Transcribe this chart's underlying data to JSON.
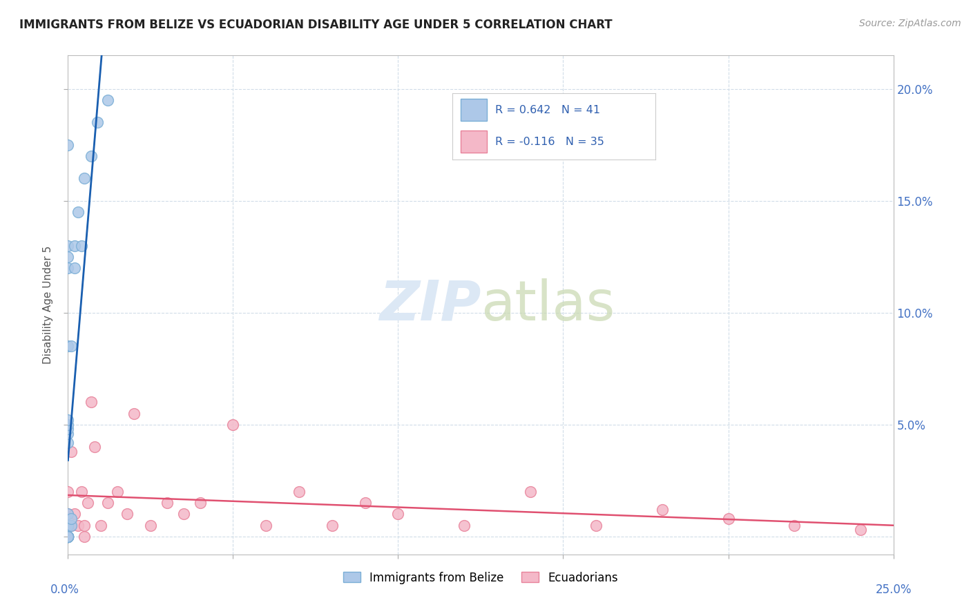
{
  "title": "IMMIGRANTS FROM BELIZE VS ECUADORIAN DISABILITY AGE UNDER 5 CORRELATION CHART",
  "source": "Source: ZipAtlas.com",
  "ylabel": "Disability Age Under 5",
  "xlim": [
    0.0,
    0.25
  ],
  "ylim": [
    -0.008,
    0.215
  ],
  "belize_color": "#adc8e8",
  "belize_edge": "#7aaed6",
  "ecuador_color": "#f4b8c8",
  "ecuador_edge": "#e8829a",
  "belize_line_color": "#1a5fb0",
  "belize_dash_color": "#b0c8e0",
  "ecuador_line_color": "#e05070",
  "watermark_color": "#dce8f5",
  "belize_x": [
    0.0,
    0.0,
    0.0,
    0.0,
    0.0,
    0.0,
    0.0,
    0.0,
    0.0,
    0.0,
    0.0,
    0.0,
    0.0,
    0.0,
    0.0,
    0.0,
    0.0,
    0.0,
    0.0,
    0.0,
    0.0,
    0.0,
    0.0,
    0.0,
    0.0,
    0.0,
    0.0,
    0.0,
    0.0,
    0.0,
    0.001,
    0.001,
    0.001,
    0.002,
    0.002,
    0.003,
    0.004,
    0.005,
    0.007,
    0.009,
    0.012
  ],
  "belize_y": [
    0.0,
    0.0,
    0.0,
    0.0,
    0.0,
    0.0,
    0.0,
    0.0,
    0.0,
    0.0,
    0.0,
    0.0,
    0.0,
    0.0,
    0.0,
    0.0,
    0.005,
    0.005,
    0.005,
    0.01,
    0.042,
    0.046,
    0.048,
    0.05,
    0.052,
    0.085,
    0.12,
    0.125,
    0.13,
    0.175,
    0.005,
    0.008,
    0.085,
    0.12,
    0.13,
    0.145,
    0.13,
    0.16,
    0.17,
    0.185,
    0.195
  ],
  "ecuador_x": [
    0.0,
    0.0,
    0.0,
    0.001,
    0.001,
    0.002,
    0.003,
    0.004,
    0.005,
    0.005,
    0.006,
    0.007,
    0.008,
    0.01,
    0.012,
    0.015,
    0.018,
    0.02,
    0.025,
    0.03,
    0.035,
    0.04,
    0.05,
    0.06,
    0.07,
    0.08,
    0.09,
    0.1,
    0.12,
    0.14,
    0.16,
    0.18,
    0.2,
    0.22,
    0.24
  ],
  "ecuador_y": [
    0.0,
    0.01,
    0.02,
    0.005,
    0.038,
    0.01,
    0.005,
    0.02,
    0.0,
    0.005,
    0.015,
    0.06,
    0.04,
    0.005,
    0.015,
    0.02,
    0.01,
    0.055,
    0.005,
    0.015,
    0.01,
    0.015,
    0.05,
    0.005,
    0.02,
    0.005,
    0.015,
    0.01,
    0.005,
    0.02,
    0.005,
    0.012,
    0.008,
    0.005,
    0.003
  ]
}
